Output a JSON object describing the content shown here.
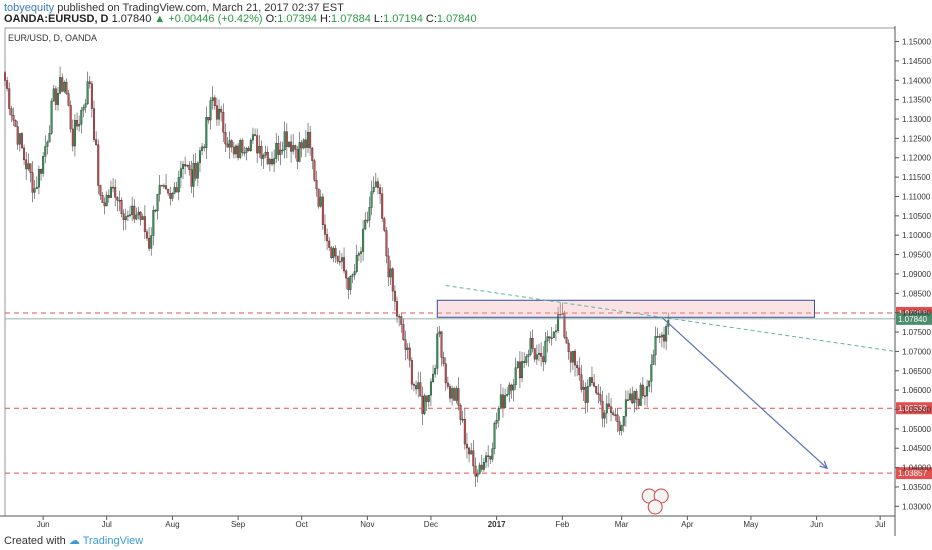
{
  "header": {
    "author": "tobyequity",
    "published": "published on TradingView.com, March 21, 2017 02:37 EST",
    "symbol": "OANDA:EURUSD, D",
    "last": "1.07840",
    "change": "+0.00446 (+0.42%)",
    "o_label": "O:",
    "o_value": "1.07394",
    "h_label": "H:",
    "h_value": "1.07884",
    "l_label": "L:",
    "l_value": "1.07194",
    "c_label": "C:",
    "c_value": "1.07840"
  },
  "footer": {
    "created_with": "Created with",
    "brand": "TradingView"
  },
  "colors": {
    "up": "#2e9e58",
    "down": "#d5494b",
    "level": "#e05050",
    "box": "#3450a0",
    "arrow": "#5a6fb6",
    "trend": "#5fb3a8"
  },
  "chart_data": {
    "type": "candlestick",
    "title": "EUR/USD, D, OANDA",
    "ylim": [
      1.0275,
      1.1535
    ],
    "y_ticks": [
      "1.15000",
      "1.14500",
      "1.14000",
      "1.13500",
      "1.13000",
      "1.12500",
      "1.12000",
      "1.11500",
      "1.11000",
      "1.10500",
      "1.10000",
      "1.09500",
      "1.09000",
      "1.08500",
      "1.08000",
      "1.07500",
      "1.07000",
      "1.06500",
      "1.06000",
      "1.05500",
      "1.05000",
      "1.04500",
      "1.04000",
      "1.03500",
      "1.03000"
    ],
    "x_labels": [
      {
        "label": "Jun",
        "day": 18
      },
      {
        "label": "Jul",
        "day": 48
      },
      {
        "label": "Aug",
        "day": 79
      },
      {
        "label": "Sep",
        "day": 110
      },
      {
        "label": "Oct",
        "day": 140
      },
      {
        "label": "Nov",
        "day": 171
      },
      {
        "label": "Dec",
        "day": 201
      },
      {
        "label": "2017",
        "day": 232
      },
      {
        "label": "Feb",
        "day": 263
      },
      {
        "label": "Mar",
        "day": 291
      },
      {
        "label": "Apr",
        "day": 322
      },
      {
        "label": "May",
        "day": 352
      },
      {
        "label": "Jun",
        "day": 383
      },
      {
        "label": "Jul",
        "day": 413
      }
    ],
    "x_range_days": [
      0,
      420
    ],
    "anchors": [
      {
        "day": 0,
        "price": 1.14
      },
      {
        "day": 4,
        "price": 1.13
      },
      {
        "day": 9,
        "price": 1.12
      },
      {
        "day": 14,
        "price": 1.112
      },
      {
        "day": 18,
        "price": 1.12
      },
      {
        "day": 23,
        "price": 1.135
      },
      {
        "day": 28,
        "price": 1.14
      },
      {
        "day": 32,
        "price": 1.125
      },
      {
        "day": 36,
        "price": 1.132
      },
      {
        "day": 40,
        "price": 1.14
      },
      {
        "day": 45,
        "price": 1.108
      },
      {
        "day": 52,
        "price": 1.112
      },
      {
        "day": 58,
        "price": 1.104
      },
      {
        "day": 63,
        "price": 1.106
      },
      {
        "day": 68,
        "price": 1.098
      },
      {
        "day": 72,
        "price": 1.112
      },
      {
        "day": 78,
        "price": 1.108
      },
      {
        "day": 84,
        "price": 1.12
      },
      {
        "day": 88,
        "price": 1.114
      },
      {
        "day": 94,
        "price": 1.125
      },
      {
        "day": 98,
        "price": 1.135
      },
      {
        "day": 103,
        "price": 1.128
      },
      {
        "day": 108,
        "price": 1.12
      },
      {
        "day": 114,
        "price": 1.125
      },
      {
        "day": 120,
        "price": 1.123
      },
      {
        "day": 126,
        "price": 1.12
      },
      {
        "day": 132,
        "price": 1.126
      },
      {
        "day": 138,
        "price": 1.122
      },
      {
        "day": 143,
        "price": 1.124
      },
      {
        "day": 148,
        "price": 1.11
      },
      {
        "day": 153,
        "price": 1.098
      },
      {
        "day": 158,
        "price": 1.093
      },
      {
        "day": 163,
        "price": 1.087
      },
      {
        "day": 168,
        "price": 1.096
      },
      {
        "day": 173,
        "price": 1.11
      },
      {
        "day": 176,
        "price": 1.112
      },
      {
        "day": 180,
        "price": 1.095
      },
      {
        "day": 184,
        "price": 1.082
      },
      {
        "day": 188,
        "price": 1.073
      },
      {
        "day": 193,
        "price": 1.062
      },
      {
        "day": 197,
        "price": 1.056
      },
      {
        "day": 201,
        "price": 1.062
      },
      {
        "day": 205,
        "price": 1.075
      },
      {
        "day": 209,
        "price": 1.06
      },
      {
        "day": 213,
        "price": 1.058
      },
      {
        "day": 217,
        "price": 1.048
      },
      {
        "day": 221,
        "price": 1.04
      },
      {
        "day": 225,
        "price": 1.041
      },
      {
        "day": 229,
        "price": 1.045
      },
      {
        "day": 233,
        "price": 1.055
      },
      {
        "day": 238,
        "price": 1.062
      },
      {
        "day": 243,
        "price": 1.066
      },
      {
        "day": 248,
        "price": 1.072
      },
      {
        "day": 253,
        "price": 1.066
      },
      {
        "day": 258,
        "price": 1.076
      },
      {
        "day": 262,
        "price": 1.079
      },
      {
        "day": 266,
        "price": 1.071
      },
      {
        "day": 270,
        "price": 1.064
      },
      {
        "day": 274,
        "price": 1.059
      },
      {
        "day": 278,
        "price": 1.062
      },
      {
        "day": 282,
        "price": 1.055
      },
      {
        "day": 286,
        "price": 1.054
      },
      {
        "day": 290,
        "price": 1.052
      },
      {
        "day": 294,
        "price": 1.056
      },
      {
        "day": 298,
        "price": 1.058
      },
      {
        "day": 302,
        "price": 1.06
      },
      {
        "day": 306,
        "price": 1.07
      },
      {
        "day": 310,
        "price": 1.074
      },
      {
        "day": 313,
        "price": 1.078
      }
    ],
    "levels": [
      {
        "price": 1.07993,
        "label": "1.07993"
      },
      {
        "price": 1.05533,
        "label": "1.05533"
      },
      {
        "price": 1.03857,
        "label": "1.03857"
      }
    ],
    "last_price": {
      "price": 1.0784,
      "label": "1.07840"
    },
    "resistance_box": {
      "day_start": 204,
      "day_end": 382,
      "price_top": 1.0832,
      "price_bottom": 1.0788
    },
    "trendline": {
      "day_start": 208,
      "price_start": 1.087,
      "day_end": 420,
      "price_end": 1.07
    },
    "projection_arrow": {
      "day_start": 310,
      "price_start": 1.0788,
      "day_end": 388,
      "price_end": 1.0398
    }
  }
}
